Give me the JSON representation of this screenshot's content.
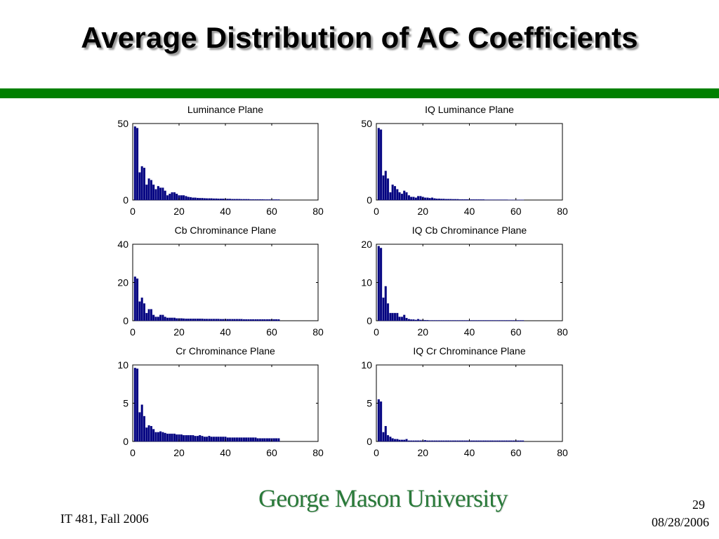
{
  "slide": {
    "title": "Average Distribution of AC Coefficients",
    "footer_course": "IT 481, Fall 2006",
    "page_number": "29",
    "date": "08/28/2006",
    "logo_text": "George Mason University"
  },
  "colors": {
    "bar": "#000080",
    "title_rule": "#008000",
    "logo": "#2a7a3a"
  },
  "chart_data": [
    {
      "type": "bar",
      "title": "Luminance Plane",
      "xlim": [
        0,
        80
      ],
      "ylim": [
        0,
        50
      ],
      "xticks": [
        0,
        20,
        40,
        60,
        80
      ],
      "yticks": [
        0,
        50
      ],
      "x": [
        1,
        2,
        3,
        4,
        5,
        6,
        7,
        8,
        9,
        10,
        11,
        12,
        13,
        14,
        15,
        16,
        17,
        18,
        19,
        20,
        21,
        22,
        23,
        24,
        25,
        26,
        27,
        28,
        29,
        30,
        31,
        32,
        33,
        34,
        35,
        36,
        37,
        38,
        39,
        40,
        41,
        42,
        43,
        44,
        45,
        46,
        47,
        48,
        49,
        50,
        51,
        52,
        53,
        54,
        55,
        56,
        57,
        58,
        59,
        60,
        61,
        62,
        63
      ],
      "values": [
        48,
        47,
        18,
        22,
        21,
        10,
        14,
        13,
        10,
        7,
        9,
        8,
        8,
        6,
        3,
        4,
        5,
        5,
        4,
        3,
        3,
        3,
        2.5,
        2,
        1.8,
        1.5,
        1.5,
        1.3,
        1.2,
        1.2,
        1.1,
        1,
        1,
        1,
        0.9,
        0.9,
        0.8,
        0.8,
        0.8,
        0.7,
        0.7,
        0.7,
        0.6,
        0.6,
        0.6,
        0.6,
        0.5,
        0.5,
        0.5,
        0.5,
        0.4,
        0.4,
        0.4,
        0.4,
        0.4,
        0.4,
        0.3,
        0.3,
        0.3,
        0.3,
        0.3,
        0.3,
        0.3
      ]
    },
    {
      "type": "bar",
      "title": "IQ Luminance Plane",
      "xlim": [
        0,
        80
      ],
      "ylim": [
        0,
        50
      ],
      "xticks": [
        0,
        20,
        40,
        60,
        80
      ],
      "yticks": [
        0,
        50
      ],
      "x": [
        1,
        2,
        3,
        4,
        5,
        6,
        7,
        8,
        9,
        10,
        11,
        12,
        13,
        14,
        15,
        16,
        17,
        18,
        19,
        20,
        21,
        22,
        23,
        24,
        25,
        26,
        27,
        28,
        29,
        30,
        31,
        32,
        33,
        34,
        35,
        36,
        37,
        38,
        39,
        40,
        41,
        42,
        43,
        44,
        45,
        46,
        47,
        48,
        49,
        50,
        51,
        52,
        53,
        54,
        55,
        56,
        57,
        58,
        59,
        60,
        61,
        62,
        63
      ],
      "values": [
        47,
        46,
        16,
        19,
        14,
        5,
        10,
        9,
        7,
        5,
        4,
        6,
        5,
        3,
        2,
        2,
        1.5,
        2.5,
        2.5,
        2,
        1.5,
        1.5,
        1.2,
        1.5,
        1,
        0.8,
        0.8,
        0.7,
        0.7,
        0.6,
        0.6,
        0.6,
        0.5,
        0.5,
        0.5,
        0.4,
        0.4,
        0.4,
        0.4,
        0.3,
        0.3,
        0.3,
        0.3,
        0.3,
        0.3,
        0.3,
        0.2,
        0.2,
        0.2,
        0.2,
        0.2,
        0.2,
        0.2,
        0.2,
        0.2,
        0.2,
        0.1,
        0.1,
        0.1,
        0.1,
        0.1,
        0.1,
        0.1
      ]
    },
    {
      "type": "bar",
      "title": "Cb Chrominance Plane",
      "xlim": [
        0,
        80
      ],
      "ylim": [
        0,
        40
      ],
      "xticks": [
        0,
        20,
        40,
        60,
        80
      ],
      "yticks": [
        0,
        20,
        40
      ],
      "x": [
        1,
        2,
        3,
        4,
        5,
        6,
        7,
        8,
        9,
        10,
        11,
        12,
        13,
        14,
        15,
        16,
        17,
        18,
        19,
        20,
        21,
        22,
        23,
        24,
        25,
        26,
        27,
        28,
        29,
        30,
        31,
        32,
        33,
        34,
        35,
        36,
        37,
        38,
        39,
        40,
        41,
        42,
        43,
        44,
        45,
        46,
        47,
        48,
        49,
        50,
        51,
        52,
        53,
        54,
        55,
        56,
        57,
        58,
        59,
        60,
        61,
        62,
        63
      ],
      "values": [
        23,
        22,
        10,
        12,
        9,
        4,
        6,
        6,
        3,
        2,
        2,
        3,
        3,
        2,
        1.5,
        1.5,
        1.5,
        1.5,
        1.2,
        1.2,
        1.2,
        1.1,
        1,
        1,
        1,
        1,
        1,
        1,
        1,
        1,
        0.9,
        0.9,
        0.9,
        0.9,
        0.9,
        0.9,
        0.9,
        0.8,
        0.8,
        0.8,
        0.8,
        0.8,
        0.8,
        0.8,
        0.8,
        0.8,
        0.8,
        0.7,
        0.7,
        0.7,
        0.7,
        0.7,
        0.7,
        0.7,
        0.7,
        0.7,
        0.7,
        0.7,
        0.7,
        0.7,
        0.7,
        0.7,
        0.7
      ]
    },
    {
      "type": "bar",
      "title": "IQ Cb Chrominance Plane",
      "xlim": [
        0,
        80
      ],
      "ylim": [
        0,
        20
      ],
      "xticks": [
        0,
        20,
        40,
        60,
        80
      ],
      "yticks": [
        0,
        10,
        20
      ],
      "x": [
        1,
        2,
        3,
        4,
        5,
        6,
        7,
        8,
        9,
        10,
        11,
        12,
        13,
        14,
        15,
        16,
        17,
        18,
        19,
        20,
        21,
        22,
        23,
        24,
        25,
        26,
        27,
        28,
        29,
        30,
        31,
        32,
        33,
        34,
        35,
        36,
        37,
        38,
        39,
        40,
        41,
        42,
        43,
        44,
        45,
        46,
        47,
        48,
        49,
        50,
        51,
        52,
        53,
        54,
        55,
        56,
        57,
        58,
        59,
        60,
        61,
        62,
        63
      ],
      "values": [
        19.5,
        19,
        6,
        9,
        4.5,
        2,
        2,
        2,
        2,
        1,
        1,
        1.5,
        0.7,
        0.4,
        0.3,
        0.3,
        0.2,
        0.4,
        0.2,
        0.2,
        0.15,
        0.15,
        0.1,
        0.1,
        0.1,
        0.1,
        0.1,
        0.1,
        0.1,
        0.1,
        0.1,
        0.1,
        0.1,
        0.1,
        0.1,
        0.1,
        0.1,
        0.1,
        0.1,
        0.1,
        0.1,
        0.1,
        0.1,
        0.1,
        0.1,
        0.1,
        0.1,
        0.1,
        0.1,
        0.1,
        0.1,
        0.1,
        0.1,
        0.1,
        0.1,
        0.1,
        0.1,
        0.1,
        0.1,
        0.1,
        0.1,
        0.1,
        0.1
      ]
    },
    {
      "type": "bar",
      "title": "Cr Chrominance Plane",
      "xlim": [
        0,
        80
      ],
      "ylim": [
        0,
        10
      ],
      "xticks": [
        0,
        20,
        40,
        60,
        80
      ],
      "yticks": [
        0,
        5,
        10
      ],
      "x": [
        1,
        2,
        3,
        4,
        5,
        6,
        7,
        8,
        9,
        10,
        11,
        12,
        13,
        14,
        15,
        16,
        17,
        18,
        19,
        20,
        21,
        22,
        23,
        24,
        25,
        26,
        27,
        28,
        29,
        30,
        31,
        32,
        33,
        34,
        35,
        36,
        37,
        38,
        39,
        40,
        41,
        42,
        43,
        44,
        45,
        46,
        47,
        48,
        49,
        50,
        51,
        52,
        53,
        54,
        55,
        56,
        57,
        58,
        59,
        60,
        61,
        62,
        63
      ],
      "values": [
        9.6,
        9.5,
        3.8,
        4.8,
        3.3,
        1.8,
        2.1,
        2,
        1.6,
        1.2,
        1.2,
        1.3,
        1.2,
        1.1,
        1,
        1,
        1,
        1,
        0.9,
        0.9,
        0.9,
        0.8,
        0.8,
        0.8,
        0.8,
        0.8,
        0.7,
        0.7,
        0.8,
        0.7,
        0.6,
        0.6,
        0.7,
        0.6,
        0.6,
        0.6,
        0.6,
        0.6,
        0.6,
        0.6,
        0.5,
        0.5,
        0.5,
        0.5,
        0.5,
        0.5,
        0.5,
        0.5,
        0.5,
        0.5,
        0.5,
        0.5,
        0.5,
        0.4,
        0.4,
        0.4,
        0.4,
        0.4,
        0.4,
        0.4,
        0.4,
        0.4,
        0.4
      ]
    },
    {
      "type": "bar",
      "title": "IQ Cr Chrominance Plane",
      "xlim": [
        0,
        80
      ],
      "ylim": [
        0,
        10
      ],
      "xticks": [
        0,
        20,
        40,
        60,
        80
      ],
      "yticks": [
        0,
        5,
        10
      ],
      "x": [
        1,
        2,
        3,
        4,
        5,
        6,
        7,
        8,
        9,
        10,
        11,
        12,
        13,
        14,
        15,
        16,
        17,
        18,
        19,
        20,
        21,
        22,
        23,
        24,
        25,
        26,
        27,
        28,
        29,
        30,
        31,
        32,
        33,
        34,
        35,
        36,
        37,
        38,
        39,
        40,
        41,
        42,
        43,
        44,
        45,
        46,
        47,
        48,
        49,
        50,
        51,
        52,
        53,
        54,
        55,
        56,
        57,
        58,
        59,
        60,
        61,
        62,
        63
      ],
      "values": [
        5.5,
        5.2,
        1.2,
        2,
        0.8,
        0.6,
        0.4,
        0.3,
        0.3,
        0.2,
        0.2,
        0.2,
        0.3,
        0.1,
        0.1,
        0.1,
        0.1,
        0.1,
        0.1,
        0.1,
        0.15,
        0.1,
        0.1,
        0.1,
        0.1,
        0.1,
        0.1,
        0.1,
        0.1,
        0.1,
        0.1,
        0.1,
        0.1,
        0.1,
        0.1,
        0.1,
        0.1,
        0.1,
        0.1,
        0.1,
        0.1,
        0.1,
        0.1,
        0.1,
        0.1,
        0.1,
        0.1,
        0.1,
        0.1,
        0.1,
        0.1,
        0.1,
        0.1,
        0.1,
        0.1,
        0.1,
        0.1,
        0.1,
        0.1,
        0.1,
        0.1,
        0.1,
        0.1
      ]
    }
  ]
}
